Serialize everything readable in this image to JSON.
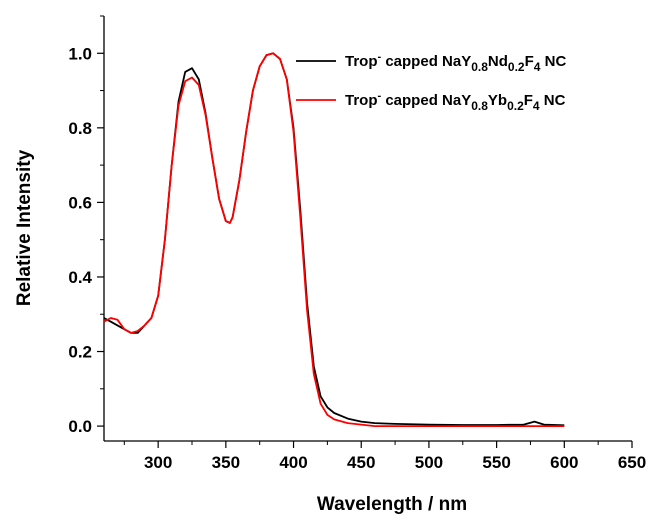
{
  "chart_data": {
    "type": "line",
    "title": "",
    "xlabel": "Wavelength / nm",
    "ylabel": "Relative Intensity",
    "xlim": [
      260,
      650
    ],
    "ylim": [
      -0.04,
      1.1
    ],
    "x_ticks": [
      300,
      350,
      400,
      450,
      500,
      550,
      600,
      650
    ],
    "y_ticks": [
      0.0,
      0.2,
      0.4,
      0.6,
      0.8,
      1.0
    ],
    "x_tick_labels": [
      "300",
      "350",
      "400",
      "450",
      "500",
      "550",
      "600",
      "650"
    ],
    "y_tick_labels": [
      "0.0",
      "0.2",
      "0.4",
      "0.6",
      "0.8",
      "1.0"
    ],
    "grid": false,
    "legend_position": "top-right",
    "series": [
      {
        "name": "Trop⁻ capped NaY0.8Nd0.2F4 NC",
        "legend": {
          "a": "Trop",
          "sup": "-",
          "b": " capped NaY",
          "s1": "0.8",
          "c": "Nd",
          "s2": "0.2",
          "d": "F",
          "s3": "4",
          "e": " NC"
        },
        "color": "#000000",
        "x": [
          260,
          265,
          270,
          275,
          280,
          285,
          290,
          295,
          300,
          305,
          310,
          315,
          320,
          325,
          330,
          335,
          340,
          345,
          350,
          353,
          355,
          360,
          365,
          370,
          375,
          380,
          385,
          390,
          395,
          400,
          405,
          410,
          415,
          420,
          425,
          430,
          440,
          450,
          460,
          475,
          500,
          525,
          550,
          570,
          578,
          585,
          600
        ],
        "y": [
          0.29,
          0.28,
          0.27,
          0.26,
          0.25,
          0.25,
          0.27,
          0.29,
          0.35,
          0.5,
          0.7,
          0.87,
          0.95,
          0.96,
          0.93,
          0.84,
          0.72,
          0.61,
          0.55,
          0.545,
          0.56,
          0.66,
          0.79,
          0.9,
          0.965,
          0.995,
          1.0,
          0.985,
          0.93,
          0.8,
          0.58,
          0.33,
          0.16,
          0.08,
          0.05,
          0.035,
          0.02,
          0.012,
          0.008,
          0.006,
          0.004,
          0.003,
          0.003,
          0.004,
          0.012,
          0.004,
          0.002
        ]
      },
      {
        "name": "Trop⁻ capped NaY0.8Yb0.2F4 NC",
        "legend": {
          "a": "Trop",
          "sup": "-",
          "b": " capped NaY",
          "s1": "0.8",
          "c": "Yb",
          "s2": "0.2",
          "d": "F",
          "s3": "4",
          "e": " NC"
        },
        "color": "#ff0000",
        "x": [
          260,
          265,
          270,
          275,
          280,
          285,
          290,
          295,
          300,
          305,
          310,
          315,
          320,
          325,
          330,
          335,
          340,
          345,
          350,
          353,
          355,
          360,
          365,
          370,
          375,
          380,
          385,
          390,
          395,
          400,
          405,
          410,
          415,
          420,
          425,
          430,
          440,
          450,
          460,
          475,
          500,
          525,
          550,
          570,
          578,
          585,
          600
        ],
        "y": [
          0.28,
          0.29,
          0.285,
          0.26,
          0.25,
          0.255,
          0.27,
          0.29,
          0.35,
          0.5,
          0.7,
          0.86,
          0.925,
          0.935,
          0.915,
          0.835,
          0.72,
          0.61,
          0.55,
          0.545,
          0.56,
          0.66,
          0.79,
          0.9,
          0.965,
          0.995,
          1.0,
          0.985,
          0.93,
          0.79,
          0.56,
          0.31,
          0.14,
          0.06,
          0.03,
          0.018,
          0.008,
          0.004,
          0.0,
          0.0,
          0.0,
          0.0,
          0.0,
          0.0,
          0.0,
          0.0,
          0.0
        ]
      }
    ]
  }
}
